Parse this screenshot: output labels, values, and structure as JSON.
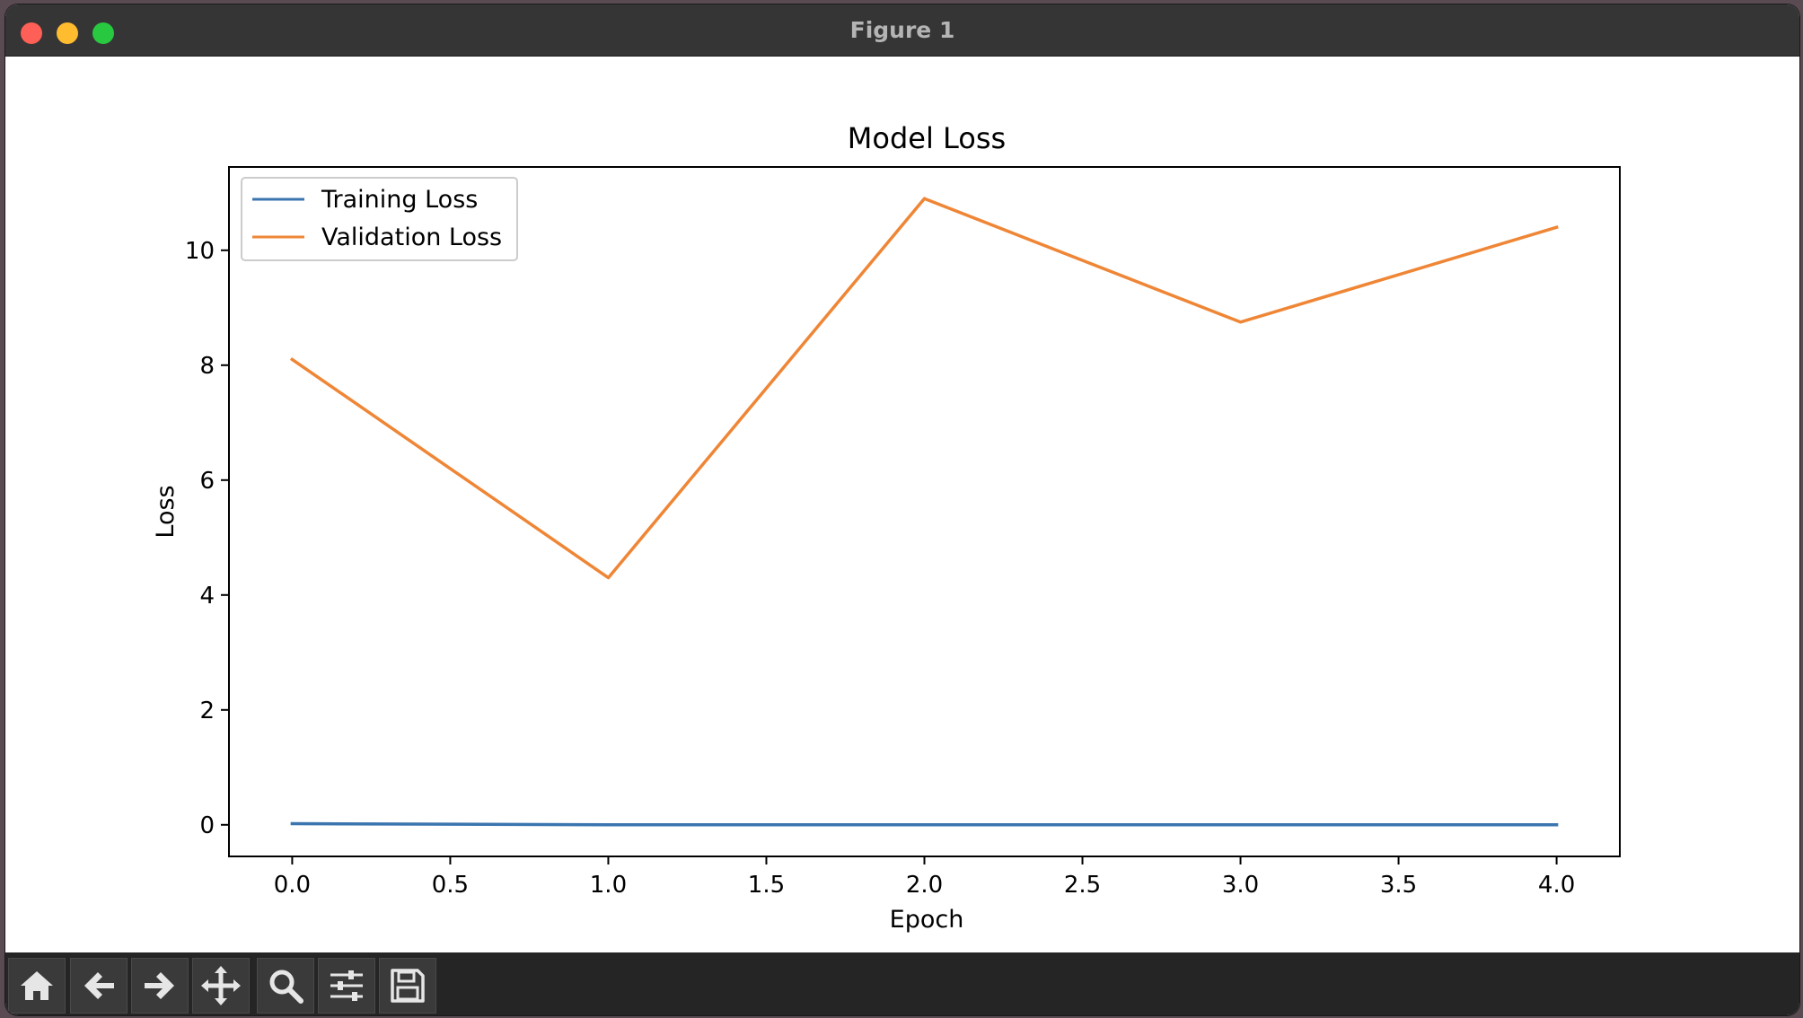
{
  "window": {
    "title": "Figure 1"
  },
  "toolbar": {
    "buttons": [
      {
        "name": "home-button",
        "icon": "home-icon"
      },
      {
        "name": "back-button",
        "icon": "arrow-left-icon"
      },
      {
        "name": "forward-button",
        "icon": "arrow-right-icon"
      },
      {
        "name": "pan-button",
        "icon": "move-icon"
      },
      {
        "name": "zoom-button",
        "icon": "magnifier-icon"
      },
      {
        "name": "configure-subplots-button",
        "icon": "sliders-icon"
      },
      {
        "name": "save-button",
        "icon": "floppy-disk-icon"
      }
    ]
  },
  "chart_data": {
    "type": "line",
    "title": "Model Loss",
    "xlabel": "Epoch",
    "ylabel": "Loss",
    "xlim": [
      -0.2,
      4.2
    ],
    "ylim": [
      -0.55,
      11.45
    ],
    "xticks": [
      0.0,
      0.5,
      1.0,
      1.5,
      2.0,
      2.5,
      3.0,
      3.5,
      4.0
    ],
    "xtick_labels": [
      "0.0",
      "0.5",
      "1.0",
      "1.5",
      "2.0",
      "2.5",
      "3.0",
      "3.5",
      "4.0"
    ],
    "yticks": [
      0,
      2,
      4,
      6,
      8,
      10
    ],
    "ytick_labels": [
      "0",
      "2",
      "4",
      "6",
      "8",
      "10"
    ],
    "grid": false,
    "legend_position": "upper-left",
    "x": [
      0,
      1,
      2,
      3,
      4
    ],
    "series": [
      {
        "name": "Training Loss",
        "color": "#3b75af",
        "values": [
          0.02,
          0.0,
          0.0,
          0.0,
          0.0
        ]
      },
      {
        "name": "Validation Loss",
        "color": "#ef8636",
        "values": [
          8.1,
          4.3,
          10.9,
          8.75,
          10.4
        ]
      }
    ]
  }
}
